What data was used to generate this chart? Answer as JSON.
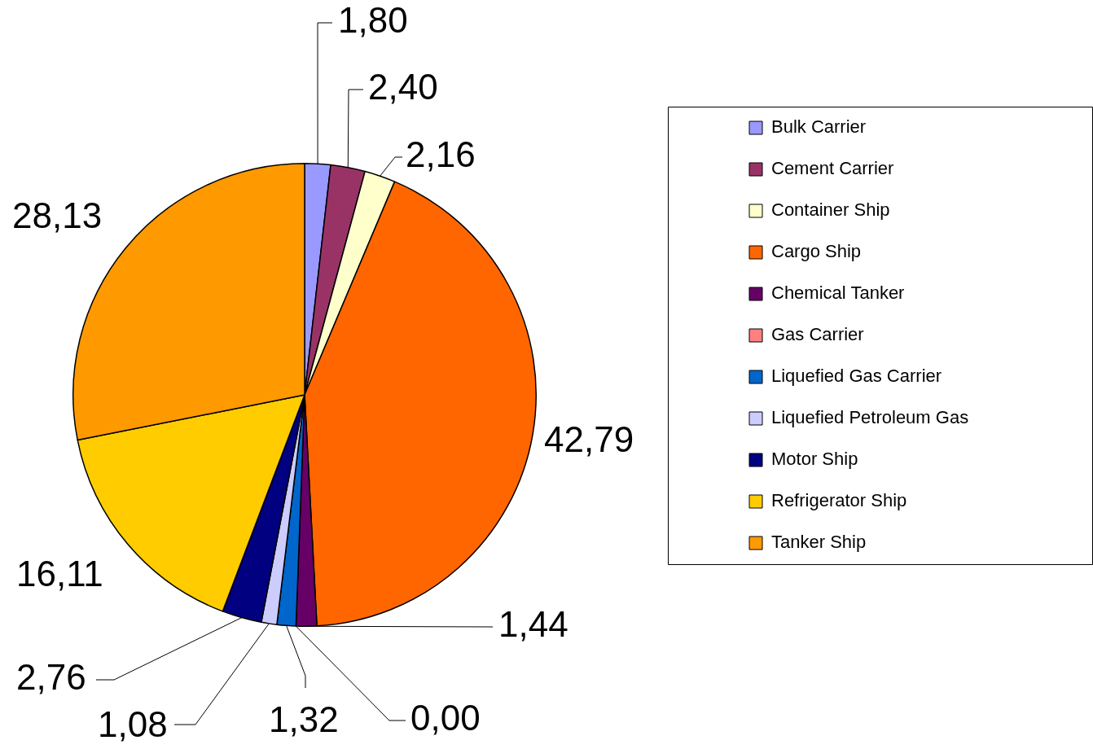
{
  "chart_data": {
    "type": "pie",
    "categories": [
      "Bulk Carrier",
      "Cement Carrier",
      "Container Ship",
      "Cargo Ship",
      "Chemical Tanker",
      "Gas Carrier",
      "Liquefied Gas Carrier",
      "Liquefied Petroleum Gas",
      "Motor Ship",
      "Refrigerator Ship",
      "Tanker Ship"
    ],
    "values": [
      1.8,
      2.4,
      2.16,
      42.79,
      1.44,
      0.0,
      1.32,
      1.08,
      2.76,
      16.11,
      28.13
    ],
    "colors": [
      "#9999ff",
      "#993366",
      "#ffffcc",
      "#ff6600",
      "#660066",
      "#ff8080",
      "#0066cc",
      "#ccccff",
      "#000080",
      "#ffcc00",
      "#ff9900"
    ],
    "value_labels": [
      "1,80",
      "2,40",
      "2,16",
      "42,79",
      "1,44",
      "0,00",
      "1,32",
      "1,08",
      "2,76",
      "16,11",
      "28,13"
    ],
    "legend": "right"
  }
}
